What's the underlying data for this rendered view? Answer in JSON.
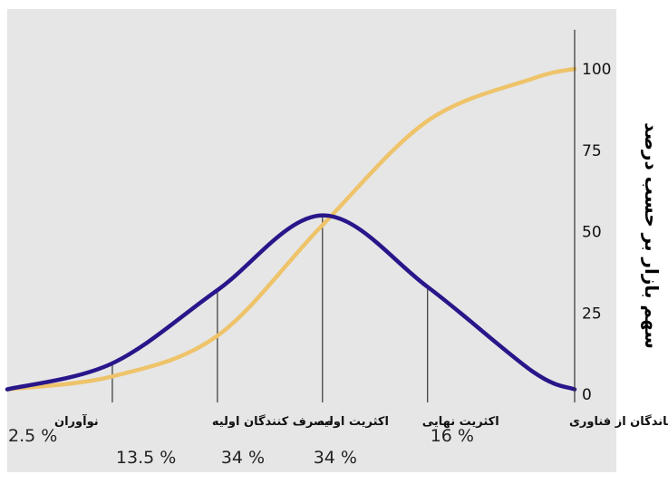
{
  "colors": {
    "plot_background": "#e6e6e6",
    "bell_curve": "#28168a",
    "cumulative_curve": "#eec36a",
    "divider_lines": "#444444",
    "axis": "#333333"
  },
  "chart_data": {
    "type": "line",
    "title": "",
    "xlabel": "",
    "ylabel": "سهم بازار بر حسب درصد",
    "y_axis_position": "right",
    "ylim": [
      0,
      112
    ],
    "yticks": [
      0,
      25,
      50,
      75,
      100
    ],
    "x_domain": [
      -3,
      2.4
    ],
    "grid": false,
    "series": [
      {
        "kind": "cumulative",
        "values": [
          {
            "x": -3.0,
            "y": 1.5
          },
          {
            "x": -2.0,
            "y": 5.5
          },
          {
            "x": -1.0,
            "y": 18
          },
          {
            "x": 0.0,
            "y": 52
          },
          {
            "x": 1.0,
            "y": 84
          },
          {
            "x": 2.0,
            "y": 97
          },
          {
            "x": 2.4,
            "y": 100
          }
        ]
      },
      {
        "kind": "bell",
        "values": [
          {
            "x": -3.0,
            "y": 1.5
          },
          {
            "x": -2.0,
            "y": 9.5
          },
          {
            "x": -1.0,
            "y": 32
          },
          {
            "x": 0.0,
            "y": 55
          },
          {
            "x": 1.0,
            "y": 33
          },
          {
            "x": 2.0,
            "y": 7
          },
          {
            "x": 2.4,
            "y": 1.5
          }
        ]
      }
    ],
    "dividers": [
      -2,
      -1,
      0,
      1
    ],
    "categories": [
      {
        "label": "نوآوران",
        "percent": "2.5 %",
        "pct_row": 1
      },
      {
        "label": "مصرف کنندگان اولیه",
        "percent": "13.5 %",
        "pct_row": 2
      },
      {
        "label": "اکثریت اولیه",
        "percent": "34 %",
        "pct_row": 2
      },
      {
        "label": "اکثریت نهایی",
        "percent": "34 %",
        "pct_row": 2
      },
      {
        "label": "عقب ماندگان از فناوری",
        "percent": "16 %",
        "pct_row": 1
      }
    ]
  }
}
